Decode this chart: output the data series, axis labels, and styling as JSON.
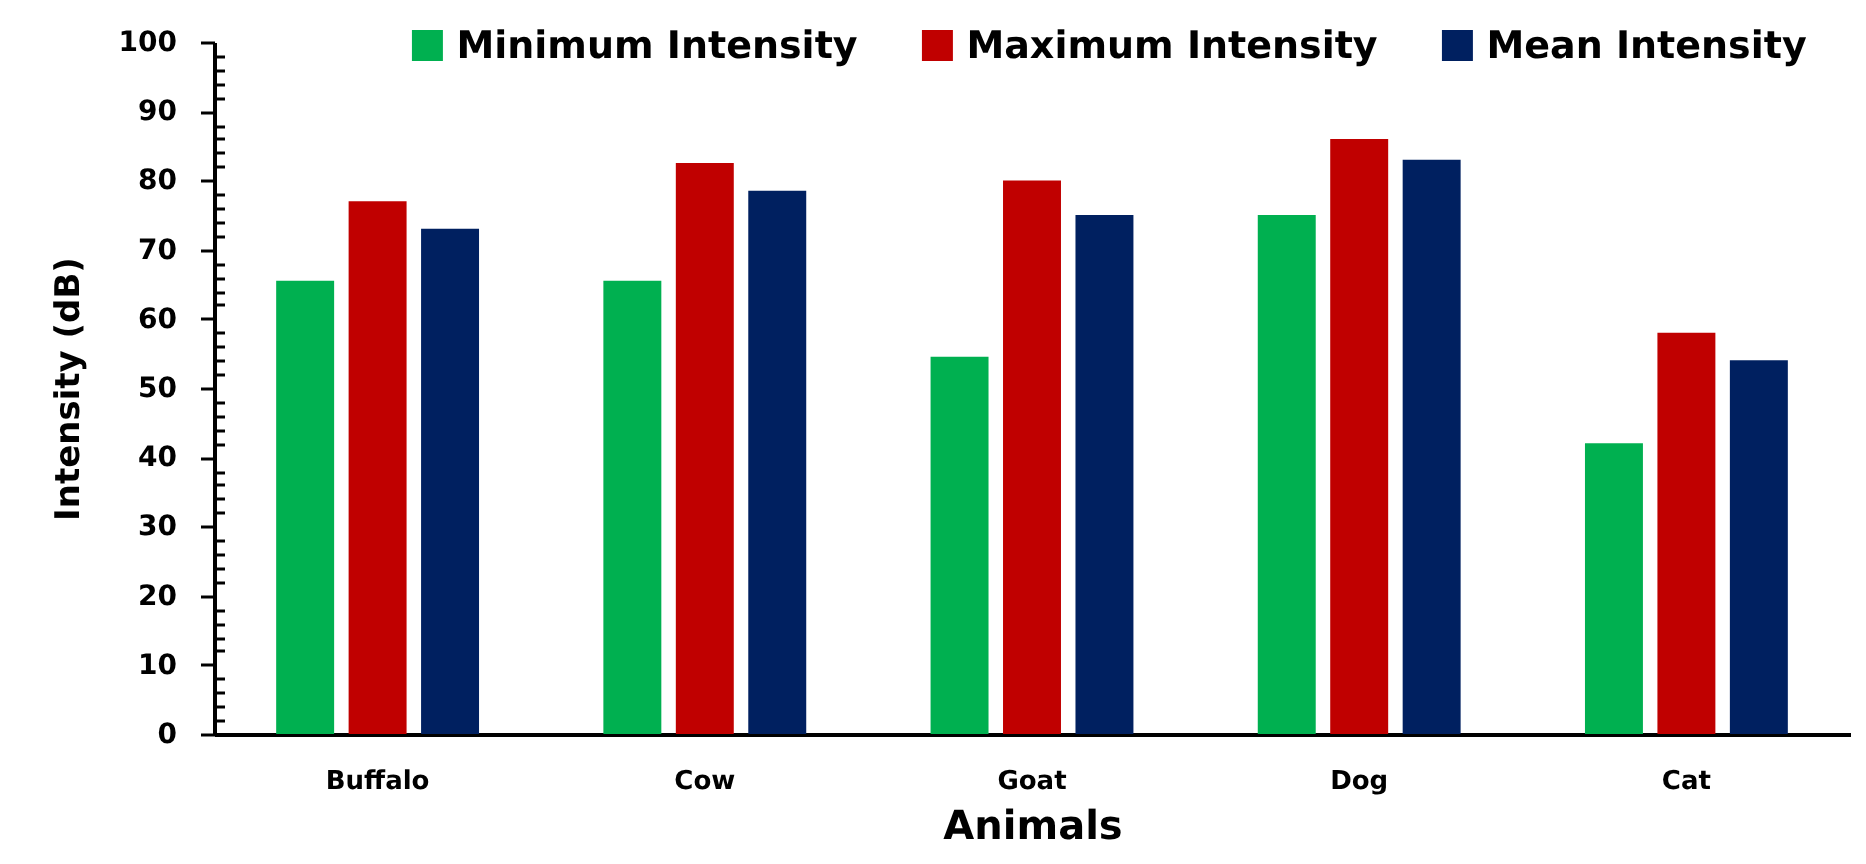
{
  "chart_data": {
    "type": "bar",
    "xlabel": "Animals",
    "ylabel": "Intensity (dB)",
    "categories": [
      "Buffalo",
      "Cow",
      "Goat",
      "Dog",
      "Cat"
    ],
    "series": [
      {
        "name": "Minimum Intensity",
        "color": "#00b050",
        "values": [
          65.5,
          65.5,
          54.5,
          75,
          42
        ]
      },
      {
        "name": "Maximum Intensity",
        "color": "#c00000",
        "values": [
          77,
          82.5,
          80,
          86,
          58
        ]
      },
      {
        "name": "Mean Intensity",
        "color": "#002060",
        "values": [
          73,
          78.5,
          75,
          83,
          54
        ]
      }
    ],
    "ylim": [
      0,
      100
    ],
    "yticks": [
      0,
      {
        "value": 2,
        "label": null
      },
      {
        "value": 4,
        "label": null
      },
      {
        "value": 6,
        "label": null
      },
      {
        "value": 8,
        "label": null
      },
      10,
      {
        "value": 12,
        "label": null
      },
      {
        "value": 14,
        "label": null
      },
      {
        "value": 16,
        "label": null
      },
      {
        "value": 18,
        "label": null
      },
      20,
      {
        "value": 22,
        "label": null
      },
      {
        "value": 24,
        "label": null
      },
      {
        "value": 26,
        "label": null
      },
      {
        "value": 28,
        "label": null
      },
      30,
      {
        "value": 32,
        "label": null
      },
      {
        "value": 34,
        "label": null
      },
      {
        "value": 36,
        "label": null
      },
      {
        "value": 38,
        "label": null
      },
      40,
      {
        "value": 42,
        "label": null
      },
      {
        "value": 44,
        "label": null
      },
      {
        "value": 46,
        "label": null
      },
      {
        "value": 48,
        "label": null
      },
      50,
      {
        "value": 52,
        "label": null
      },
      {
        "value": 54,
        "label": null
      },
      {
        "value": 56,
        "label": null
      },
      {
        "value": 58,
        "label": null
      },
      60,
      {
        "value": 62,
        "label": null
      },
      {
        "value": 64,
        "label": null
      },
      {
        "value": 66,
        "label": null
      },
      {
        "value": 68,
        "label": null
      },
      70,
      {
        "value": 72,
        "label": null
      },
      {
        "value": 74,
        "label": null
      },
      {
        "value": 76,
        "label": null
      },
      {
        "value": 78,
        "label": null
      },
      80,
      {
        "value": 82,
        "label": null
      },
      {
        "value": 84,
        "label": null
      },
      {
        "value": 86,
        "label": null
      },
      {
        "value": 88,
        "label": null
      },
      90,
      {
        "value": 92,
        "label": null
      },
      {
        "value": 94,
        "label": null
      },
      {
        "value": 96,
        "label": null
      },
      {
        "value": 98,
        "label": null
      },
      100
    ],
    "grid": false,
    "legend": "top right"
  }
}
